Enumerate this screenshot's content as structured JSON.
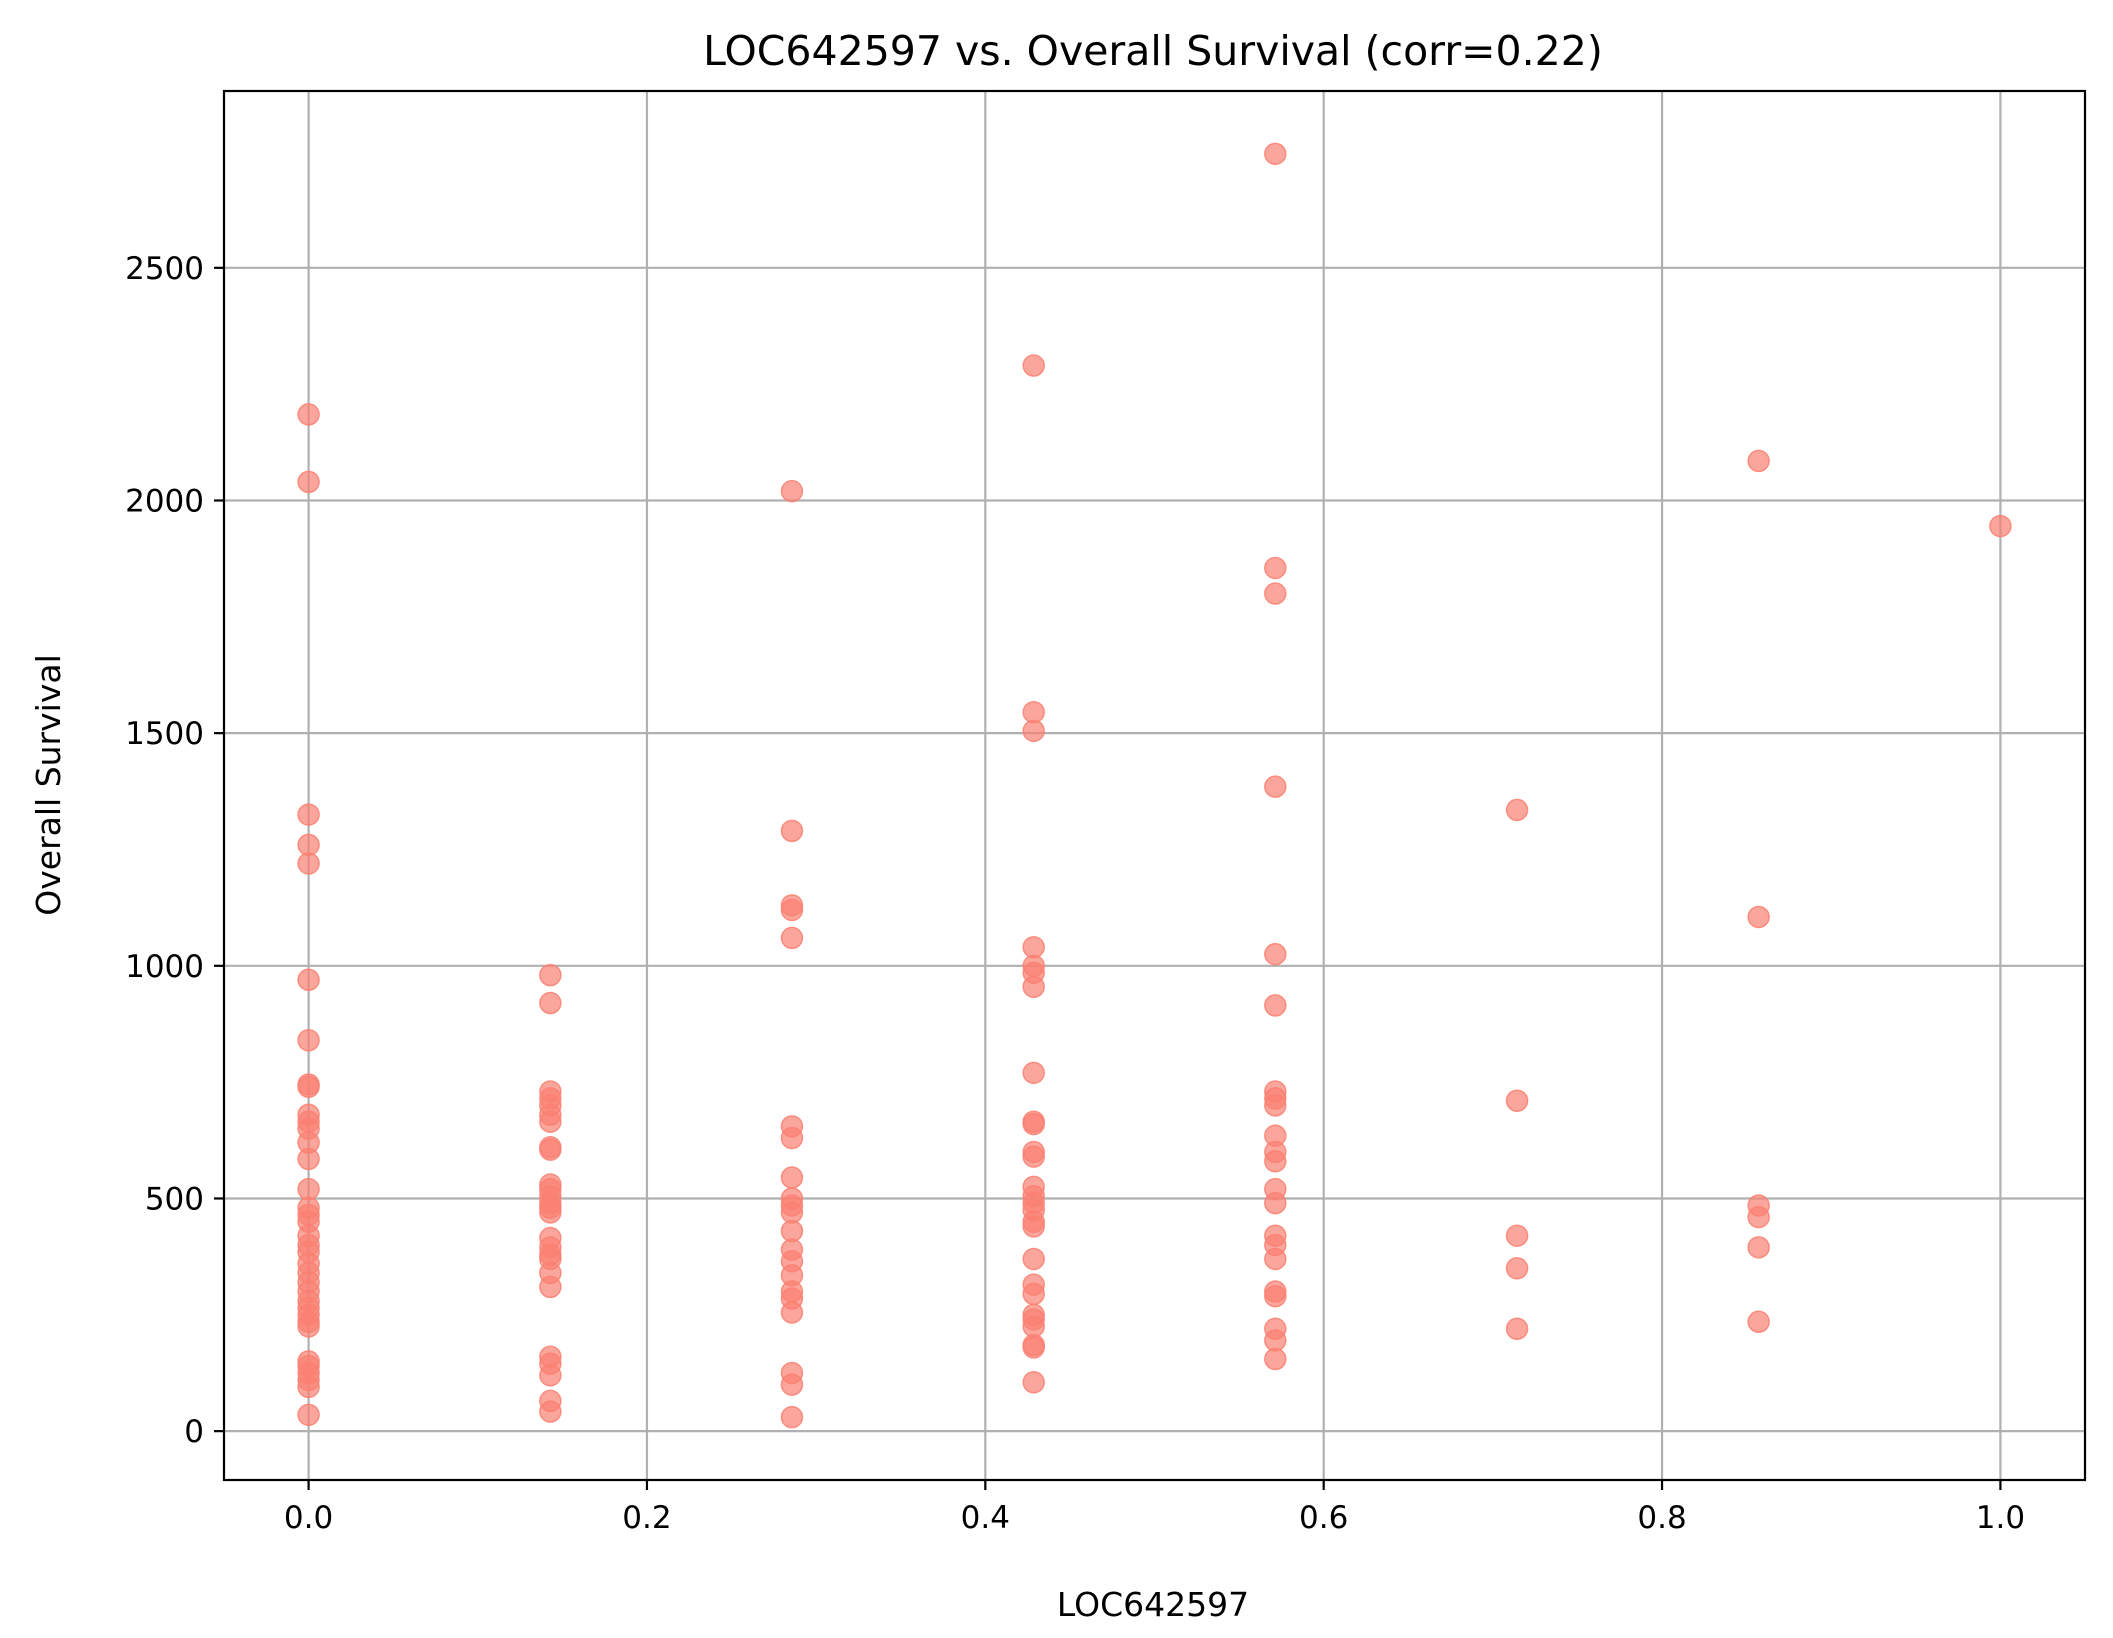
{
  "chart_data": {
    "type": "scatter",
    "title": "LOC642597 vs. Overall Survival (corr=0.22)",
    "xlabel": "LOC642597",
    "ylabel": "Overall Survival",
    "xlim": [
      -0.05,
      1.05
    ],
    "ylim": [
      -105,
      2880
    ],
    "xticks": [
      0.0,
      0.2,
      0.4,
      0.6,
      0.8,
      1.0
    ],
    "xtick_labels": [
      "0.0",
      "0.2",
      "0.4",
      "0.6",
      "0.8",
      "1.0"
    ],
    "yticks": [
      0,
      500,
      1000,
      1500,
      2000,
      2500
    ],
    "ytick_labels": [
      "0",
      "500",
      "1000",
      "1500",
      "2000",
      "2500"
    ],
    "grid": true,
    "marker_color": "#fa8072",
    "marker_alpha": 0.7,
    "points": [
      {
        "x": 0.0,
        "y": 2185
      },
      {
        "x": 0.0,
        "y": 2040
      },
      {
        "x": 0.0,
        "y": 1325
      },
      {
        "x": 0.0,
        "y": 1260
      },
      {
        "x": 0.0,
        "y": 1220
      },
      {
        "x": 0.0,
        "y": 970
      },
      {
        "x": 0.0,
        "y": 840
      },
      {
        "x": 0.0,
        "y": 745
      },
      {
        "x": 0.0,
        "y": 740
      },
      {
        "x": 0.0,
        "y": 680
      },
      {
        "x": 0.0,
        "y": 665
      },
      {
        "x": 0.0,
        "y": 650
      },
      {
        "x": 0.0,
        "y": 620
      },
      {
        "x": 0.0,
        "y": 585
      },
      {
        "x": 0.0,
        "y": 520
      },
      {
        "x": 0.0,
        "y": 480
      },
      {
        "x": 0.0,
        "y": 465
      },
      {
        "x": 0.0,
        "y": 450
      },
      {
        "x": 0.0,
        "y": 420
      },
      {
        "x": 0.0,
        "y": 400
      },
      {
        "x": 0.0,
        "y": 385
      },
      {
        "x": 0.0,
        "y": 360
      },
      {
        "x": 0.0,
        "y": 340
      },
      {
        "x": 0.0,
        "y": 320
      },
      {
        "x": 0.0,
        "y": 300
      },
      {
        "x": 0.0,
        "y": 280
      },
      {
        "x": 0.0,
        "y": 265
      },
      {
        "x": 0.0,
        "y": 250
      },
      {
        "x": 0.0,
        "y": 235
      },
      {
        "x": 0.0,
        "y": 225
      },
      {
        "x": 0.0,
        "y": 150
      },
      {
        "x": 0.0,
        "y": 140
      },
      {
        "x": 0.0,
        "y": 125
      },
      {
        "x": 0.0,
        "y": 110
      },
      {
        "x": 0.0,
        "y": 95
      },
      {
        "x": 0.0,
        "y": 35
      },
      {
        "x": 0.1429,
        "y": 980
      },
      {
        "x": 0.1429,
        "y": 920
      },
      {
        "x": 0.1429,
        "y": 730
      },
      {
        "x": 0.1429,
        "y": 715
      },
      {
        "x": 0.1429,
        "y": 700
      },
      {
        "x": 0.1429,
        "y": 680
      },
      {
        "x": 0.1429,
        "y": 665
      },
      {
        "x": 0.1429,
        "y": 610
      },
      {
        "x": 0.1429,
        "y": 605
      },
      {
        "x": 0.1429,
        "y": 530
      },
      {
        "x": 0.1429,
        "y": 520
      },
      {
        "x": 0.1429,
        "y": 505
      },
      {
        "x": 0.1429,
        "y": 490
      },
      {
        "x": 0.1429,
        "y": 480
      },
      {
        "x": 0.1429,
        "y": 470
      },
      {
        "x": 0.1429,
        "y": 415
      },
      {
        "x": 0.1429,
        "y": 395
      },
      {
        "x": 0.1429,
        "y": 380
      },
      {
        "x": 0.1429,
        "y": 370
      },
      {
        "x": 0.1429,
        "y": 340
      },
      {
        "x": 0.1429,
        "y": 310
      },
      {
        "x": 0.1429,
        "y": 160
      },
      {
        "x": 0.1429,
        "y": 145
      },
      {
        "x": 0.1429,
        "y": 120
      },
      {
        "x": 0.1429,
        "y": 65
      },
      {
        "x": 0.1429,
        "y": 42
      },
      {
        "x": 0.2857,
        "y": 2020
      },
      {
        "x": 0.2857,
        "y": 1290
      },
      {
        "x": 0.2857,
        "y": 1130
      },
      {
        "x": 0.2857,
        "y": 1120
      },
      {
        "x": 0.2857,
        "y": 1060
      },
      {
        "x": 0.2857,
        "y": 655
      },
      {
        "x": 0.2857,
        "y": 630
      },
      {
        "x": 0.2857,
        "y": 545
      },
      {
        "x": 0.2857,
        "y": 500
      },
      {
        "x": 0.2857,
        "y": 485
      },
      {
        "x": 0.2857,
        "y": 470
      },
      {
        "x": 0.2857,
        "y": 430
      },
      {
        "x": 0.2857,
        "y": 390
      },
      {
        "x": 0.2857,
        "y": 365
      },
      {
        "x": 0.2857,
        "y": 335
      },
      {
        "x": 0.2857,
        "y": 300
      },
      {
        "x": 0.2857,
        "y": 285
      },
      {
        "x": 0.2857,
        "y": 255
      },
      {
        "x": 0.2857,
        "y": 125
      },
      {
        "x": 0.2857,
        "y": 100
      },
      {
        "x": 0.2857,
        "y": 30
      },
      {
        "x": 0.4286,
        "y": 2290
      },
      {
        "x": 0.4286,
        "y": 1545
      },
      {
        "x": 0.4286,
        "y": 1505
      },
      {
        "x": 0.4286,
        "y": 1040
      },
      {
        "x": 0.4286,
        "y": 1000
      },
      {
        "x": 0.4286,
        "y": 985
      },
      {
        "x": 0.4286,
        "y": 955
      },
      {
        "x": 0.4286,
        "y": 770
      },
      {
        "x": 0.4286,
        "y": 665
      },
      {
        "x": 0.4286,
        "y": 660
      },
      {
        "x": 0.4286,
        "y": 600
      },
      {
        "x": 0.4286,
        "y": 590
      },
      {
        "x": 0.4286,
        "y": 525
      },
      {
        "x": 0.4286,
        "y": 505
      },
      {
        "x": 0.4286,
        "y": 490
      },
      {
        "x": 0.4286,
        "y": 475
      },
      {
        "x": 0.4286,
        "y": 450
      },
      {
        "x": 0.4286,
        "y": 440
      },
      {
        "x": 0.4286,
        "y": 370
      },
      {
        "x": 0.4286,
        "y": 315
      },
      {
        "x": 0.4286,
        "y": 295
      },
      {
        "x": 0.4286,
        "y": 250
      },
      {
        "x": 0.4286,
        "y": 240
      },
      {
        "x": 0.4286,
        "y": 225
      },
      {
        "x": 0.4286,
        "y": 185
      },
      {
        "x": 0.4286,
        "y": 180
      },
      {
        "x": 0.4286,
        "y": 105
      },
      {
        "x": 0.5714,
        "y": 2745
      },
      {
        "x": 0.5714,
        "y": 1855
      },
      {
        "x": 0.5714,
        "y": 1800
      },
      {
        "x": 0.5714,
        "y": 1385
      },
      {
        "x": 0.5714,
        "y": 1025
      },
      {
        "x": 0.5714,
        "y": 915
      },
      {
        "x": 0.5714,
        "y": 730
      },
      {
        "x": 0.5714,
        "y": 715
      },
      {
        "x": 0.5714,
        "y": 700
      },
      {
        "x": 0.5714,
        "y": 635
      },
      {
        "x": 0.5714,
        "y": 600
      },
      {
        "x": 0.5714,
        "y": 580
      },
      {
        "x": 0.5714,
        "y": 520
      },
      {
        "x": 0.5714,
        "y": 490
      },
      {
        "x": 0.5714,
        "y": 420
      },
      {
        "x": 0.5714,
        "y": 400
      },
      {
        "x": 0.5714,
        "y": 370
      },
      {
        "x": 0.5714,
        "y": 300
      },
      {
        "x": 0.5714,
        "y": 290
      },
      {
        "x": 0.5714,
        "y": 220
      },
      {
        "x": 0.5714,
        "y": 195
      },
      {
        "x": 0.5714,
        "y": 155
      },
      {
        "x": 0.7143,
        "y": 1335
      },
      {
        "x": 0.7143,
        "y": 710
      },
      {
        "x": 0.7143,
        "y": 420
      },
      {
        "x": 0.7143,
        "y": 350
      },
      {
        "x": 0.7143,
        "y": 220
      },
      {
        "x": 0.8571,
        "y": 2085
      },
      {
        "x": 0.8571,
        "y": 1105
      },
      {
        "x": 0.8571,
        "y": 485
      },
      {
        "x": 0.8571,
        "y": 460
      },
      {
        "x": 0.8571,
        "y": 395
      },
      {
        "x": 0.8571,
        "y": 235
      },
      {
        "x": 1.0,
        "y": 1945
      }
    ]
  }
}
